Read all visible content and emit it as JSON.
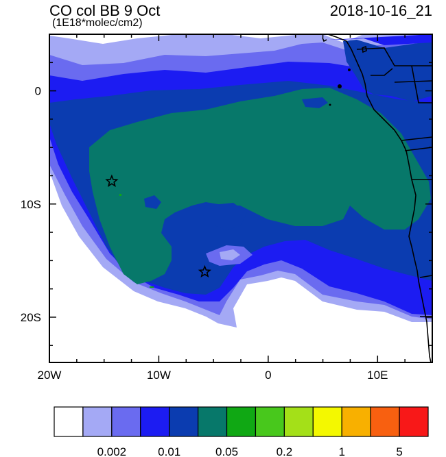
{
  "header": {
    "title": "CO col BB 9 Oct",
    "units": "(1E18*molec/cm2)",
    "timestamp": "2018-10-16_21"
  },
  "map": {
    "lon_range": [
      -20,
      15
    ],
    "lat_range": [
      -24,
      5
    ],
    "x_ticks": [
      {
        "value": -20,
        "label": "20W"
      },
      {
        "value": -10,
        "label": "10W"
      },
      {
        "value": 0,
        "label": "0"
      },
      {
        "value": 10,
        "label": "10E"
      }
    ],
    "y_ticks": [
      {
        "value": 0,
        "label": "0"
      },
      {
        "value": -10,
        "label": "10S"
      },
      {
        "value": -20,
        "label": "20S"
      }
    ],
    "markers": [
      {
        "name": "star-1",
        "lon": -14.3,
        "lat": -8.0
      },
      {
        "name": "star-2",
        "lon": -5.8,
        "lat": -16.0
      }
    ]
  },
  "colorbar": {
    "colors": [
      "#ffffff",
      "#a4a9f5",
      "#6a6bf0",
      "#1c1cf2",
      "#0b3cb0",
      "#07786a",
      "#10a814",
      "#48c81c",
      "#a4e018",
      "#f4f800",
      "#f8b000",
      "#f86010",
      "#f81818"
    ],
    "labels": [
      {
        "boundary": 2,
        "text": "0.002"
      },
      {
        "boundary": 4,
        "text": "0.01"
      },
      {
        "boundary": 6,
        "text": "0.05"
      },
      {
        "boundary": 8,
        "text": "0.2"
      },
      {
        "boundary": 10,
        "text": "1"
      },
      {
        "boundary": 12,
        "text": "5"
      }
    ]
  }
}
